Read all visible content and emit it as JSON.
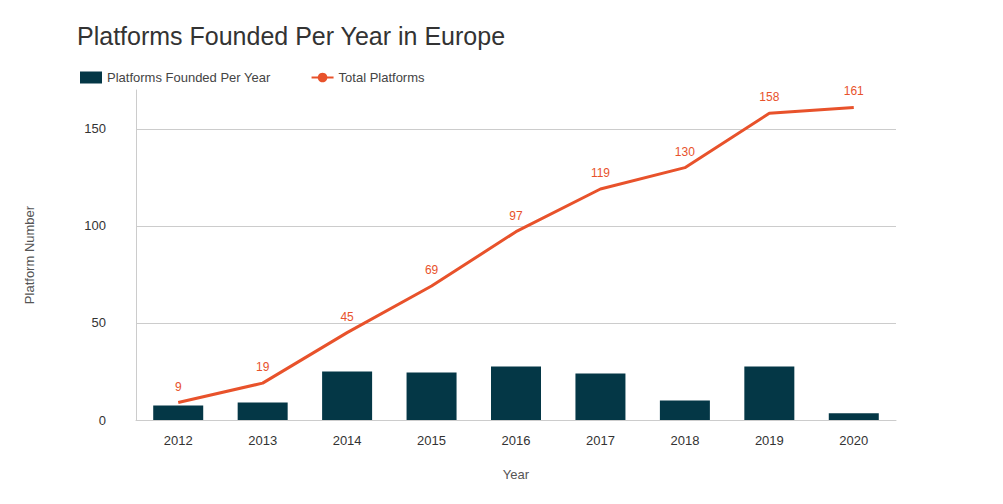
{
  "chart_data": {
    "type": "bar",
    "title": "Platforms Founded Per Year in Europe",
    "x_label": "Year",
    "y_label": "Platform Number",
    "categories": [
      "2012",
      "2013",
      "2014",
      "2015",
      "2016",
      "2017",
      "2018",
      "2019",
      "2020"
    ],
    "series": [
      {
        "name": "Platforms Founded Per Year",
        "type": "bar",
        "color": "#043746",
        "values": [
          7.5,
          9,
          25,
          24.5,
          27.5,
          24,
          10,
          27.5,
          3.5
        ]
      },
      {
        "name": "Total Platforms",
        "type": "line",
        "color": "#e8522b",
        "data_labels": true,
        "values": [
          9,
          19,
          45,
          69,
          97,
          119,
          130,
          158,
          161
        ]
      }
    ],
    "ylim": [
      0,
      170
    ],
    "yticks": [
      0,
      50,
      100,
      150
    ],
    "grid": true,
    "legend": "top-left"
  }
}
